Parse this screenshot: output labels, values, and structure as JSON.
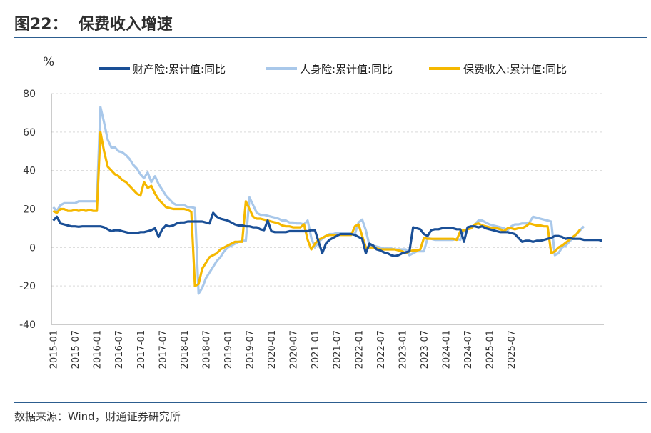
{
  "figure": {
    "title": "图22：  保费收入增速",
    "source": "数据来源：Wind，财通证券研究所"
  },
  "chart_data": {
    "type": "line",
    "ylabel": "%",
    "ylim": [
      -40,
      80
    ],
    "yticks": [
      -40,
      -20,
      0,
      20,
      40,
      60,
      80
    ],
    "grid": true,
    "legend_position": "top",
    "x_tick_labels": [
      "2015-01",
      "2015-07",
      "2016-01",
      "2016-07",
      "2017-01",
      "2017-07",
      "2018-01",
      "2018-07",
      "2019-01",
      "2019-07",
      "2020-01",
      "2020-07",
      "2021-01",
      "2021-07",
      "2022-01",
      "2022-07",
      "2023-01",
      "2023-07",
      "2024-01",
      "2024-07",
      "2025-01",
      "2025-07"
    ],
    "x_start": "2015-01",
    "series": [
      {
        "name": "财产险:累计值:同比",
        "color": "#1a4f96",
        "values": [
          14,
          16,
          12.5,
          12,
          11.5,
          11,
          11,
          10.8,
          11,
          11,
          11,
          11,
          11,
          11,
          10.5,
          9.5,
          8.5,
          9,
          9,
          8.5,
          8,
          7.5,
          7.5,
          7.5,
          8,
          8,
          8.5,
          9,
          10,
          5.5,
          9.5,
          11.5,
          11,
          11.5,
          12.5,
          13,
          13,
          13.5,
          13.5,
          13.5,
          13.5,
          13.5,
          13,
          12.5,
          18,
          16,
          15,
          14.5,
          14,
          13,
          12,
          11.5,
          11.5,
          11,
          11,
          10.5,
          10.5,
          9.5,
          9,
          14,
          8.5,
          8,
          8,
          8,
          8,
          8.5,
          8.5,
          8.5,
          8.5,
          8.5,
          8.5,
          9,
          9,
          3,
          -3,
          2,
          4,
          5,
          6,
          7,
          7,
          7,
          7,
          6.5,
          5.5,
          4.5,
          -3,
          2,
          1,
          -1,
          -1.5,
          -2.5,
          -3,
          -4,
          -4.5,
          -4,
          -3,
          -2.5,
          -2,
          10.5,
          10,
          9.5,
          7,
          6,
          9,
          9.5,
          9.5,
          10,
          10,
          10,
          10,
          9.5,
          9.5,
          3,
          10.5,
          11,
          11,
          10.5,
          11,
          10,
          9.5,
          9,
          8.5,
          8,
          8,
          8,
          7.5,
          7,
          5,
          3,
          3.5,
          3.5,
          3,
          3.5,
          3.5,
          4,
          4.5,
          5,
          6,
          6,
          5.5,
          4.5,
          5,
          4.5,
          4.5,
          4.5,
          4,
          4,
          4,
          4,
          4,
          3.5
        ]
      },
      {
        "name": "人身险:累计值:同比",
        "color": "#a9c8ea",
        "values": [
          21,
          19,
          22,
          23,
          23,
          23,
          23,
          24,
          24,
          24,
          24,
          24,
          24,
          73,
          65,
          56,
          52,
          52,
          50,
          49.5,
          48,
          46,
          43,
          41,
          38,
          36,
          39,
          34,
          37,
          33,
          30,
          27,
          25,
          23,
          22,
          22,
          22,
          21,
          21,
          20.5,
          -24,
          -21,
          -16,
          -13,
          -10,
          -7,
          -5,
          -2,
          0,
          1,
          2,
          3,
          3.5,
          3.5,
          26,
          22,
          18,
          17,
          17,
          16.5,
          16,
          15.5,
          15,
          14,
          14,
          13,
          13,
          12.5,
          12.5,
          12,
          14,
          5,
          0,
          3,
          4.5,
          6,
          7,
          7,
          7.5,
          7.5,
          7.5,
          7.5,
          7.5,
          7,
          13,
          14.5,
          9,
          1,
          1,
          0.5,
          0,
          -0.5,
          -0.5,
          -0.5,
          -1,
          -1,
          -1,
          -1,
          -4,
          -3,
          -2,
          -2,
          -2,
          5,
          4.5,
          4,
          4,
          4,
          4,
          4,
          4,
          4.5,
          4,
          9,
          9.5,
          10.5,
          12,
          14,
          14,
          13,
          12,
          11.5,
          11,
          10.5,
          10,
          9,
          11,
          12,
          12,
          12.5,
          12.5,
          13,
          16,
          15.5,
          15,
          14.5,
          14,
          13.5,
          -4,
          -3,
          0,
          1,
          3,
          5,
          7,
          9,
          11
        ]
      },
      {
        "name": "保费收入:累计值:同比",
        "color": "#f5b800",
        "values": [
          19,
          18,
          20,
          20,
          19,
          19,
          19.5,
          19,
          19.5,
          19,
          19.5,
          19,
          19,
          60,
          50,
          42,
          40,
          38,
          37,
          35,
          34,
          32,
          30,
          28,
          27,
          34,
          31,
          32,
          28,
          25,
          23,
          21,
          20.5,
          20,
          20,
          20,
          20,
          19.5,
          18.5,
          -20,
          -19,
          -11,
          -8,
          -5,
          -4,
          -3,
          -1,
          0,
          1,
          2,
          3,
          3,
          3,
          24,
          20,
          16,
          15,
          15,
          14.5,
          14,
          13.5,
          13,
          12.5,
          11.5,
          11,
          11,
          10.5,
          10.5,
          10.5,
          12,
          4,
          -1,
          2,
          4,
          5,
          6,
          6.5,
          6.5,
          6.5,
          6.5,
          6.5,
          6.5,
          6.5,
          11,
          12,
          6,
          0,
          0,
          0,
          -0.5,
          -1,
          -1,
          -1,
          -1,
          -1,
          -1.5,
          -2,
          -3,
          -2,
          -1.5,
          -1.5,
          -1,
          5,
          4.5,
          4.5,
          4.5,
          4.5,
          4.5,
          4.5,
          4.5,
          4.5,
          4,
          8.5,
          9,
          9.5,
          10,
          12,
          12.5,
          11.5,
          11,
          10.5,
          10,
          10,
          9.5,
          8.5,
          10,
          10,
          9.5,
          10,
          10,
          11,
          12.5,
          12,
          11.5,
          11.5,
          11,
          11,
          -3,
          -2,
          0,
          1,
          2.5,
          4,
          5.5,
          7,
          9.5
        ]
      }
    ]
  }
}
